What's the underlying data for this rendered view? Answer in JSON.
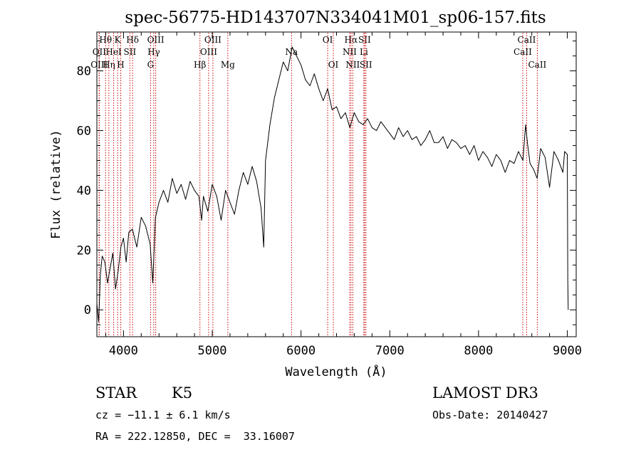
{
  "title": "spec-56775-HD143707N334041M01_sp06-157.fits",
  "info": {
    "obj_class": "STAR",
    "subclass": "K5",
    "survey": "LAMOST DR3",
    "cz": "cz = −11.1 ± 6.1 km/s",
    "obs_date": "Obs-Date: 20140427",
    "coords": "RA = 222.12850, DEC =  33.16007"
  },
  "chart_data": {
    "type": "line",
    "xlabel": "Wavelength (Å)",
    "ylabel": "Flux (relative)",
    "xlim": [
      3700,
      9100
    ],
    "ylim": [
      -9,
      93
    ],
    "xticks": [
      4000,
      5000,
      6000,
      7000,
      8000,
      9000
    ],
    "yticks": [
      0,
      20,
      40,
      60,
      80
    ],
    "grid": false,
    "series": [
      {
        "color": "#000000",
        "points": [
          [
            3700,
            2
          ],
          [
            3720,
            -4
          ],
          [
            3740,
            12
          ],
          [
            3760,
            18
          ],
          [
            3790,
            16
          ],
          [
            3820,
            9
          ],
          [
            3850,
            14
          ],
          [
            3880,
            19
          ],
          [
            3910,
            7
          ],
          [
            3940,
            13
          ],
          [
            3970,
            21
          ],
          [
            4000,
            24
          ],
          [
            4030,
            16
          ],
          [
            4060,
            26
          ],
          [
            4100,
            27
          ],
          [
            4150,
            21
          ],
          [
            4200,
            31
          ],
          [
            4250,
            28
          ],
          [
            4300,
            22
          ],
          [
            4330,
            9
          ],
          [
            4360,
            31
          ],
          [
            4400,
            36
          ],
          [
            4450,
            40
          ],
          [
            4500,
            36
          ],
          [
            4550,
            44
          ],
          [
            4600,
            39
          ],
          [
            4650,
            42
          ],
          [
            4700,
            37
          ],
          [
            4750,
            43
          ],
          [
            4800,
            40
          ],
          [
            4850,
            38
          ],
          [
            4880,
            30
          ],
          [
            4900,
            38
          ],
          [
            4950,
            33
          ],
          [
            5000,
            42
          ],
          [
            5050,
            38
          ],
          [
            5100,
            30
          ],
          [
            5150,
            40
          ],
          [
            5200,
            36
          ],
          [
            5250,
            32
          ],
          [
            5300,
            40
          ],
          [
            5350,
            46
          ],
          [
            5400,
            42
          ],
          [
            5450,
            48
          ],
          [
            5500,
            43
          ],
          [
            5550,
            34
          ],
          [
            5580,
            21
          ],
          [
            5600,
            50
          ],
          [
            5650,
            62
          ],
          [
            5700,
            71
          ],
          [
            5750,
            77
          ],
          [
            5800,
            83
          ],
          [
            5850,
            80
          ],
          [
            5900,
            88
          ],
          [
            5950,
            85
          ],
          [
            6000,
            82
          ],
          [
            6050,
            77
          ],
          [
            6100,
            75
          ],
          [
            6150,
            79
          ],
          [
            6200,
            74
          ],
          [
            6250,
            70
          ],
          [
            6300,
            74
          ],
          [
            6350,
            67
          ],
          [
            6400,
            68
          ],
          [
            6450,
            64
          ],
          [
            6500,
            66
          ],
          [
            6550,
            61
          ],
          [
            6600,
            66
          ],
          [
            6650,
            63
          ],
          [
            6700,
            62
          ],
          [
            6750,
            64
          ],
          [
            6800,
            61
          ],
          [
            6850,
            60
          ],
          [
            6900,
            63
          ],
          [
            6950,
            61
          ],
          [
            7000,
            59
          ],
          [
            7050,
            57
          ],
          [
            7100,
            61
          ],
          [
            7150,
            58
          ],
          [
            7200,
            60
          ],
          [
            7250,
            57
          ],
          [
            7300,
            58
          ],
          [
            7350,
            55
          ],
          [
            7400,
            57
          ],
          [
            7450,
            60
          ],
          [
            7500,
            56
          ],
          [
            7550,
            56
          ],
          [
            7600,
            58
          ],
          [
            7650,
            54
          ],
          [
            7700,
            57
          ],
          [
            7750,
            56
          ],
          [
            7800,
            54
          ],
          [
            7850,
            55
          ],
          [
            7900,
            52
          ],
          [
            7950,
            55
          ],
          [
            8000,
            50
          ],
          [
            8050,
            53
          ],
          [
            8100,
            51
          ],
          [
            8150,
            48
          ],
          [
            8200,
            52
          ],
          [
            8250,
            50
          ],
          [
            8300,
            46
          ],
          [
            8350,
            50
          ],
          [
            8400,
            49
          ],
          [
            8450,
            53
          ],
          [
            8500,
            50
          ],
          [
            8530,
            62
          ],
          [
            8550,
            56
          ],
          [
            8580,
            49
          ],
          [
            8620,
            47
          ],
          [
            8660,
            44
          ],
          [
            8700,
            54
          ],
          [
            8750,
            51
          ],
          [
            8800,
            41
          ],
          [
            8850,
            53
          ],
          [
            8900,
            50
          ],
          [
            8950,
            46
          ],
          [
            8970,
            53
          ],
          [
            9000,
            52
          ],
          [
            9005,
            10
          ],
          [
            9010,
            0
          ]
        ]
      }
    ],
    "lines": [
      {
        "name": "Hθ",
        "wl": 3798,
        "row": 1
      },
      {
        "name": "OII",
        "wl": 3727,
        "row": 2
      },
      {
        "name": "OIII",
        "wl": 3726,
        "row": 3
      },
      {
        "name": "Hη",
        "wl": 3835,
        "row": 3
      },
      {
        "name": "HeI",
        "wl": 3889,
        "row": 2
      },
      {
        "name": "K",
        "wl": 3934,
        "row": 1
      },
      {
        "name": "H",
        "wl": 3969,
        "row": 3
      },
      {
        "name": "SII",
        "wl": 4072,
        "row": 2
      },
      {
        "name": "Hδ",
        "wl": 4102,
        "row": 1
      },
      {
        "name": "OIII",
        "wl": 4363,
        "row": 1
      },
      {
        "name": "Hγ",
        "wl": 4341,
        "row": 2
      },
      {
        "name": "G",
        "wl": 4305,
        "row": 3
      },
      {
        "name": "Hβ",
        "wl": 4861,
        "row": 3
      },
      {
        "name": "OIII",
        "wl": 4959,
        "row": 2
      },
      {
        "name": "OIII",
        "wl": 5007,
        "row": 1
      },
      {
        "name": "Mg",
        "wl": 5175,
        "row": 3
      },
      {
        "name": "Na",
        "wl": 5893,
        "row": 2
      },
      {
        "name": "OI",
        "wl": 6300,
        "row": 1
      },
      {
        "name": "OI",
        "wl": 6364,
        "row": 3
      },
      {
        "name": "Hα",
        "wl": 6563,
        "row": 1
      },
      {
        "name": "NII",
        "wl": 6548,
        "row": 2
      },
      {
        "name": "NII",
        "wl": 6583,
        "row": 3
      },
      {
        "name": "SII",
        "wl": 6716,
        "row": 1
      },
      {
        "name": "Li",
        "wl": 6708,
        "row": 2
      },
      {
        "name": "SII",
        "wl": 6731,
        "row": 3
      },
      {
        "name": "CaII",
        "wl": 8542,
        "row": 1
      },
      {
        "name": "CaII",
        "wl": 8498,
        "row": 2
      },
      {
        "name": "CaII",
        "wl": 8662,
        "row": 3
      }
    ],
    "line_color": "#cc0000"
  }
}
